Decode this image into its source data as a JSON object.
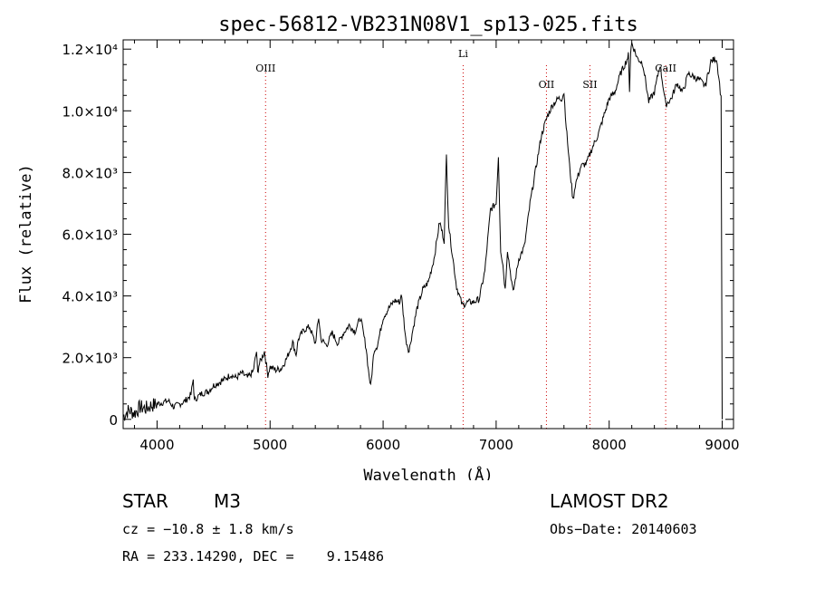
{
  "chart_data": {
    "type": "line",
    "title": "spec-56812-VB231N08V1_sp13-025.fits",
    "xlabel": "Wavelength (Å)",
    "ylabel": "Flux (relative)",
    "xlim": [
      3700,
      9100
    ],
    "ylim": [
      -300,
      12300
    ],
    "x_ticks": [
      {
        "value": 4000,
        "label": "4000"
      },
      {
        "value": 5000,
        "label": "5000"
      },
      {
        "value": 6000,
        "label": "6000"
      },
      {
        "value": 7000,
        "label": "7000"
      },
      {
        "value": 8000,
        "label": "8000"
      },
      {
        "value": 9000,
        "label": "9000"
      }
    ],
    "y_ticks": [
      {
        "value": 0,
        "label": "0"
      },
      {
        "value": 2000,
        "label": "2.0×10³"
      },
      {
        "value": 4000,
        "label": "4.0×10³"
      },
      {
        "value": 6000,
        "label": "6.0×10³"
      },
      {
        "value": 8000,
        "label": "8.0×10³"
      },
      {
        "value": 10000,
        "label": "1.0×10⁴"
      },
      {
        "value": 12000,
        "label": "1.2×10⁴"
      }
    ],
    "grid": false,
    "line_color": "#000000",
    "marker_color": "#cc0000",
    "spectral_lines": [
      {
        "label": "OIII",
        "x": 4960
      },
      {
        "label": "Li",
        "x": 6708
      },
      {
        "label": "OII",
        "x": 7445
      },
      {
        "label": "SII",
        "x": 7830
      },
      {
        "label": "CaII",
        "x": 8500
      }
    ],
    "series": [
      {
        "x": [
          3700,
          3750,
          3800,
          3850,
          3900,
          3950,
          4000,
          4050,
          4100,
          4150,
          4200,
          4250,
          4300,
          4320,
          4330,
          4350,
          4400,
          4450,
          4500,
          4550,
          4600,
          4650,
          4700,
          4750,
          4800,
          4850,
          4880,
          4890,
          4900,
          4950,
          4980,
          5000,
          5050,
          5100,
          5150,
          5200,
          5230,
          5250,
          5300,
          5350,
          5400,
          5430,
          5450,
          5500,
          5550,
          5600,
          5650,
          5700,
          5750,
          5800,
          5850,
          5870,
          5890,
          5920,
          5950,
          6000,
          6050,
          6100,
          6150,
          6160,
          6200,
          6230,
          6250,
          6300,
          6350,
          6400,
          6450,
          6500,
          6540,
          6560,
          6580,
          6600,
          6650,
          6700,
          6750,
          6800,
          6850,
          6900,
          6950,
          7000,
          7020,
          7040,
          7060,
          7080,
          7100,
          7150,
          7200,
          7250,
          7300,
          7350,
          7400,
          7450,
          7500,
          7550,
          7580,
          7600,
          7620,
          7650,
          7680,
          7700,
          7750,
          7800,
          7850,
          7900,
          7950,
          8000,
          8050,
          8100,
          8150,
          8170,
          8180,
          8190,
          8200,
          8250,
          8280,
          8300,
          8350,
          8400,
          8450,
          8500,
          8550,
          8600,
          8650,
          8700,
          8750,
          8800,
          8850,
          8900,
          8950,
          8970,
          8990,
          9000
        ],
        "y": [
          100,
          300,
          200,
          400,
          350,
          450,
          500,
          550,
          600,
          400,
          500,
          600,
          800,
          1300,
          600,
          700,
          850,
          900,
          1100,
          1200,
          1300,
          1450,
          1350,
          1500,
          1350,
          1550,
          2200,
          1500,
          1750,
          2200,
          1450,
          1700,
          1600,
          1650,
          2000,
          2500,
          2100,
          2600,
          2900,
          3000,
          2450,
          3300,
          2600,
          2400,
          2800,
          2450,
          2800,
          3050,
          2850,
          3300,
          2300,
          1600,
          1050,
          2250,
          2400,
          3300,
          3600,
          3850,
          3800,
          4100,
          2600,
          2200,
          2650,
          3600,
          4200,
          4450,
          5200,
          6400,
          5800,
          8550,
          6300,
          5700,
          4300,
          3700,
          3800,
          3800,
          3900,
          4800,
          6800,
          7000,
          8550,
          5500,
          5000,
          4200,
          5500,
          4100,
          5200,
          5600,
          7000,
          8100,
          9200,
          9800,
          10200,
          10400,
          10400,
          10600,
          9500,
          8200,
          7100,
          7600,
          8200,
          8300,
          8800,
          9200,
          9800,
          10400,
          10600,
          11200,
          11600,
          11800,
          10700,
          11900,
          12200,
          11700,
          11600,
          11500,
          10300,
          10600,
          11500,
          10200,
          10400,
          10900,
          10600,
          11200,
          11100,
          11000,
          10800,
          11600,
          11700,
          11100,
          10400,
          0
        ]
      }
    ]
  },
  "info": {
    "object_class": "STAR",
    "subclass": "M3",
    "survey": "LAMOST DR2",
    "cz": "cz = −10.8 ± 1.8 km/s",
    "obs_date": "Obs−Date: 20140603",
    "coords": "RA = 233.14290, DEC =    9.15486"
  }
}
